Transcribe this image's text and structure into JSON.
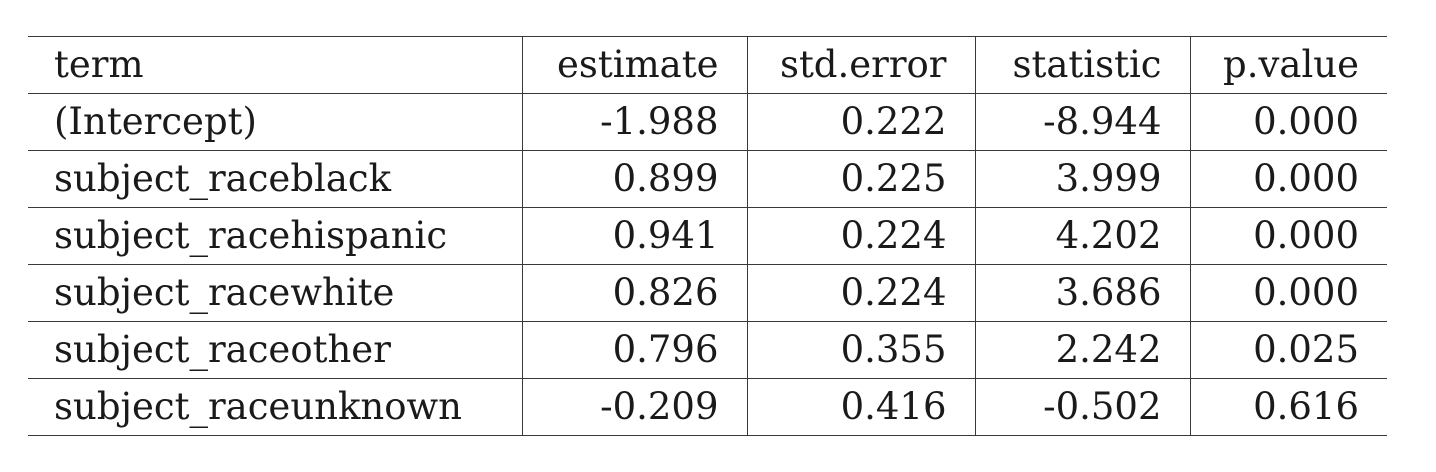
{
  "table": {
    "columns": [
      "term",
      "estimate",
      "std.error",
      "statistic",
      "p.value"
    ],
    "rows": [
      [
        "(Intercept)",
        "-1.988",
        "0.222",
        "-8.944",
        "0.000"
      ],
      [
        "subject_raceblack",
        "0.899",
        "0.225",
        "3.999",
        "0.000"
      ],
      [
        "subject_racehispanic",
        "0.941",
        "0.224",
        "4.202",
        "0.000"
      ],
      [
        "subject_racewhite",
        "0.826",
        "0.224",
        "3.686",
        "0.000"
      ],
      [
        "subject_raceother",
        "0.796",
        "0.355",
        "2.242",
        "0.025"
      ],
      [
        "subject_raceunknown",
        "-0.209",
        "0.416",
        "-0.502",
        "0.616"
      ]
    ]
  }
}
